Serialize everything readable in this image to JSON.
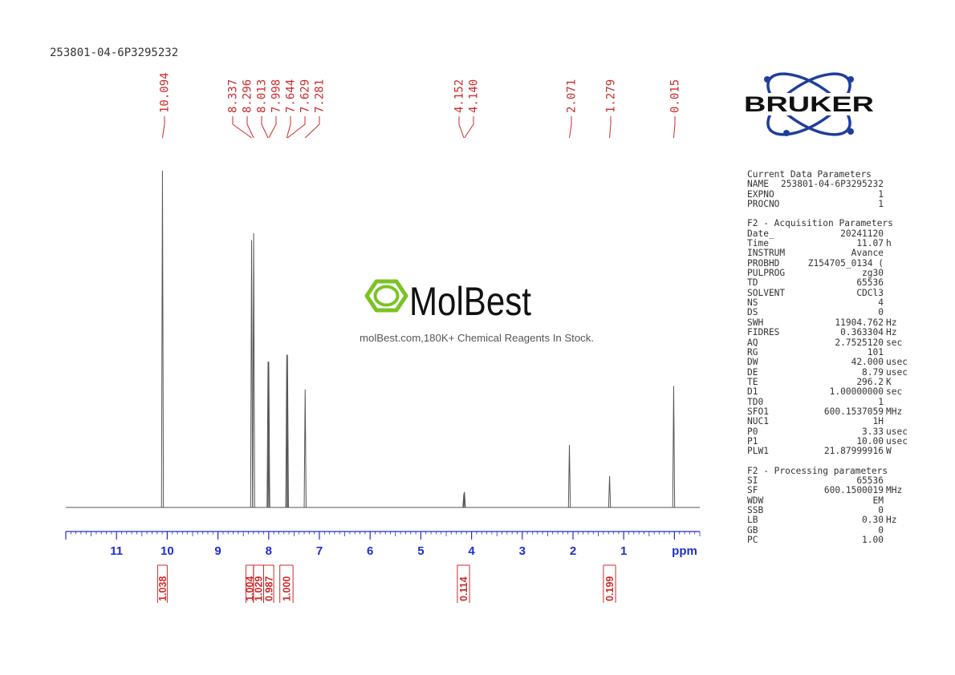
{
  "sample_name": "253801-04-6P3295232",
  "peak_labels": [
    "10.094",
    "8.337",
    "8.296",
    "8.013",
    "7.998",
    "7.644",
    "7.629",
    "7.281",
    "4.152",
    "4.140",
    "2.071",
    "1.279",
    "0.015"
  ],
  "watermark": {
    "brand": "MolBest",
    "tagline": "molBest.com,180K+ Chemical Reagents In Stock."
  },
  "logo": {
    "text": "BRUKER"
  },
  "colors": {
    "peak_label": "#cc2a2a",
    "axis": "#1f2ecc",
    "integral": "#cc2a2a",
    "spectrum": "#555555",
    "watermark_green": "#7bc224",
    "logo_blue": "#1f3e9a"
  },
  "chart_data": {
    "type": "line",
    "xlabel": "ppm",
    "x_axis_reversed": true,
    "xlim": [
      12.0,
      -0.5
    ],
    "ylim": [
      0,
      1.0
    ],
    "x_ticks": [
      {
        "value": 11,
        "label": "11"
      },
      {
        "value": 10,
        "label": "10"
      },
      {
        "value": 9,
        "label": "9"
      },
      {
        "value": 8,
        "label": "8"
      },
      {
        "value": 7,
        "label": "7"
      },
      {
        "value": 6,
        "label": "6"
      },
      {
        "value": 5,
        "label": "5"
      },
      {
        "value": 4,
        "label": "4"
      },
      {
        "value": 3,
        "label": "3"
      },
      {
        "value": 2,
        "label": "2"
      },
      {
        "value": 1,
        "label": "1"
      }
    ],
    "peaks": [
      {
        "ppm": 10.094,
        "height": 0.97
      },
      {
        "ppm": 8.337,
        "height": 0.77
      },
      {
        "ppm": 8.296,
        "height": 0.79
      },
      {
        "ppm": 8.013,
        "height": 0.42
      },
      {
        "ppm": 7.998,
        "height": 0.42
      },
      {
        "ppm": 7.644,
        "height": 0.44
      },
      {
        "ppm": 7.629,
        "height": 0.44
      },
      {
        "ppm": 7.281,
        "height": 0.34
      },
      {
        "ppm": 4.152,
        "height": 0.04
      },
      {
        "ppm": 4.14,
        "height": 0.045
      },
      {
        "ppm": 2.071,
        "height": 0.18
      },
      {
        "ppm": 1.279,
        "height": 0.09
      },
      {
        "ppm": 0.015,
        "height": 0.35
      }
    ],
    "integrals": [
      {
        "from": 10.19,
        "to": 10.0,
        "value": "1.038"
      },
      {
        "from": 8.45,
        "to": 8.3,
        "value": "1.004"
      },
      {
        "from": 8.3,
        "to": 8.1,
        "value": "1.029"
      },
      {
        "from": 8.1,
        "to": 7.9,
        "value": "0.987"
      },
      {
        "from": 7.78,
        "to": 7.52,
        "value": "1.000"
      },
      {
        "from": 4.28,
        "to": 4.04,
        "value": "0.114"
      },
      {
        "from": 1.4,
        "to": 1.16,
        "value": "0.199"
      }
    ]
  },
  "parameters": [
    {
      "title": "Current Data Parameters",
      "rows": [
        {
          "name": "NAME",
          "value": "253801-04-6P3295232",
          "unit": ""
        },
        {
          "name": "EXPNO",
          "value": "1",
          "unit": ""
        },
        {
          "name": "PROCNO",
          "value": "1",
          "unit": ""
        }
      ]
    },
    {
      "title": "F2 - Acquisition Parameters",
      "rows": [
        {
          "name": "Date_",
          "value": "20241120",
          "unit": ""
        },
        {
          "name": "Time",
          "value": "11.07",
          "unit": "h"
        },
        {
          "name": "INSTRUM",
          "value": "Avance",
          "unit": ""
        },
        {
          "name": "PROBHD",
          "value": "Z154705_0134 (",
          "unit": ""
        },
        {
          "name": "PULPROG",
          "value": "zg30",
          "unit": ""
        },
        {
          "name": "TD",
          "value": "65536",
          "unit": ""
        },
        {
          "name": "SOLVENT",
          "value": "CDCl3",
          "unit": ""
        },
        {
          "name": "NS",
          "value": "4",
          "unit": ""
        },
        {
          "name": "DS",
          "value": "0",
          "unit": ""
        },
        {
          "name": "SWH",
          "value": "11904.762",
          "unit": "Hz"
        },
        {
          "name": "FIDRES",
          "value": "0.363304",
          "unit": "Hz"
        },
        {
          "name": "AQ",
          "value": "2.7525120",
          "unit": "sec"
        },
        {
          "name": "RG",
          "value": "101",
          "unit": ""
        },
        {
          "name": "DW",
          "value": "42.000",
          "unit": "usec"
        },
        {
          "name": "DE",
          "value": "8.79",
          "unit": "usec"
        },
        {
          "name": "TE",
          "value": "296.2",
          "unit": "K"
        },
        {
          "name": "D1",
          "value": "1.00000000",
          "unit": "sec"
        },
        {
          "name": "TD0",
          "value": "1",
          "unit": ""
        },
        {
          "name": "SFO1",
          "value": "600.1537059",
          "unit": "MHz"
        },
        {
          "name": "NUC1",
          "value": "1H",
          "unit": ""
        },
        {
          "name": "P0",
          "value": "3.33",
          "unit": "usec"
        },
        {
          "name": "P1",
          "value": "10.00",
          "unit": "usec"
        },
        {
          "name": "PLW1",
          "value": "21.87999916",
          "unit": "W"
        }
      ]
    },
    {
      "title": "F2 - Processing parameters",
      "rows": [
        {
          "name": "SI",
          "value": "65536",
          "unit": ""
        },
        {
          "name": "SF",
          "value": "600.1500019",
          "unit": "MHz"
        },
        {
          "name": "WDW",
          "value": "EM",
          "unit": ""
        },
        {
          "name": "SSB",
          "value": "0",
          "unit": ""
        },
        {
          "name": "LB",
          "value": "0.30",
          "unit": "Hz"
        },
        {
          "name": "GB",
          "value": "0",
          "unit": ""
        },
        {
          "name": "PC",
          "value": "1.00",
          "unit": ""
        }
      ]
    }
  ]
}
